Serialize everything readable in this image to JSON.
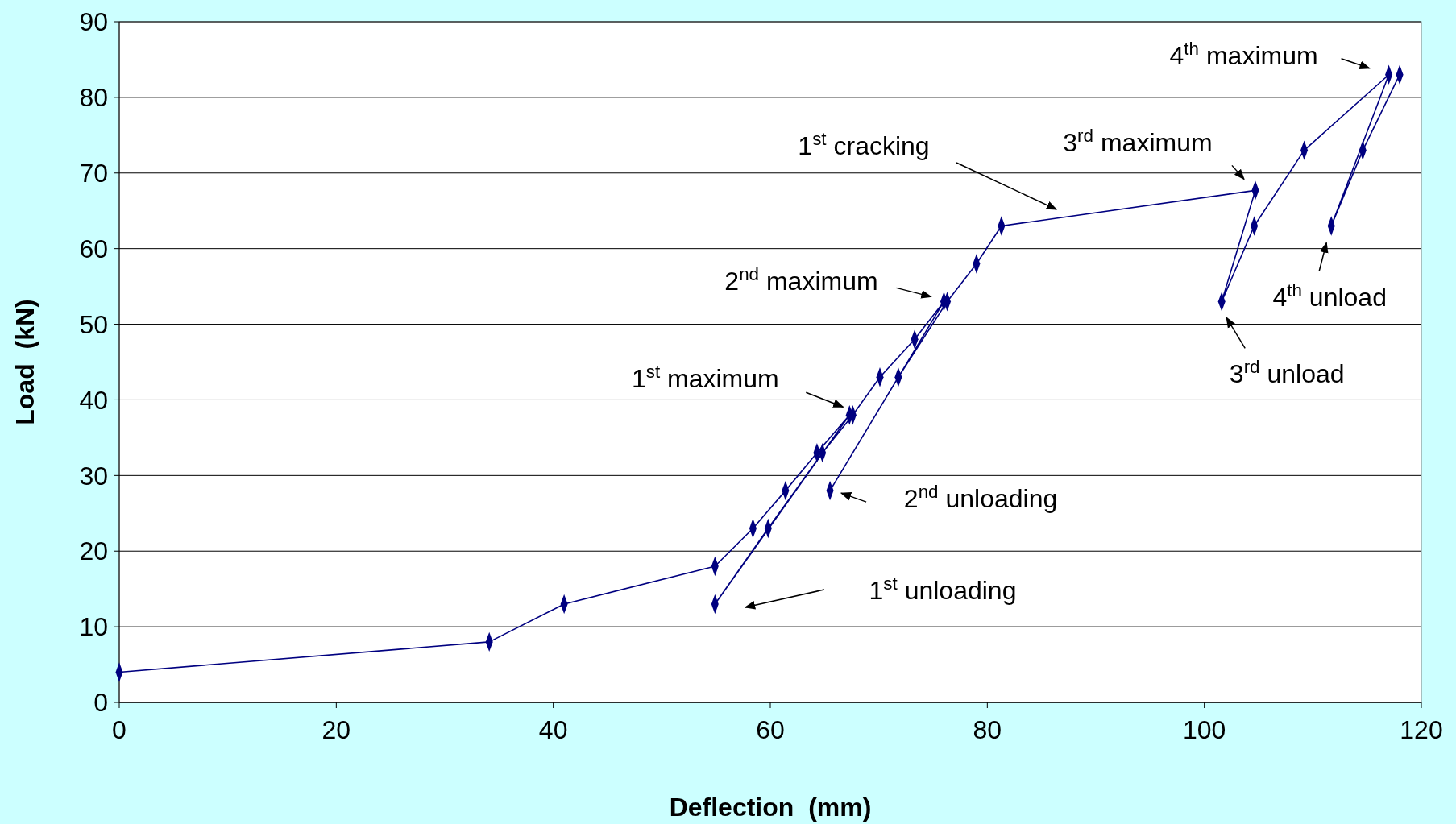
{
  "chart_data": {
    "type": "line",
    "xlabel": "Deflection  (mm)",
    "ylabel": "Load  (kN)",
    "xlim": [
      0,
      120
    ],
    "xticks": [
      0,
      20,
      40,
      60,
      80,
      100,
      120
    ],
    "ylim": [
      0,
      90
    ],
    "yticks": [
      0,
      10,
      20,
      30,
      40,
      50,
      60,
      70,
      80,
      90
    ],
    "grid": "y",
    "marker": "diamond",
    "line_style": "solid",
    "series": [
      {
        "color": "#000080",
        "x": [
          0,
          34.1,
          41,
          54.9,
          58.4,
          61.4,
          64.3,
          67.3,
          54.9,
          59.8,
          64.8,
          67.6,
          70.1,
          73.3,
          76,
          65.5,
          71.8,
          76.3,
          79,
          81.3,
          104.7,
          101.6,
          104.6,
          109.2,
          117,
          111.7,
          114.6,
          118
        ],
        "values": [
          4,
          8,
          13,
          18,
          23,
          28,
          33,
          38,
          13,
          23,
          33,
          38,
          43,
          48,
          53,
          28,
          43,
          53,
          58,
          63,
          67.7,
          53,
          63,
          73,
          83,
          63,
          73,
          83
        ]
      }
    ],
    "annotations": [
      {
        "text": "4$^{th}$ maximum",
        "x": 117,
        "y": 83
      },
      {
        "text": "3$^{rd}$ maximum",
        "x": 104.7,
        "y": 67.7
      },
      "1$^{st}$ cracking",
      {
        "text": "2$^{nd}$ maximum",
        "x": 76,
        "y": 53
      },
      {
        "text": "1$^{st}$ maximum",
        "x": 67.3,
        "y": 38
      },
      {
        "text": "2$^{nd}$ unloading",
        "x": 65.5,
        "y": 28
      },
      "1$^{st}$ unloading",
      {
        "text": "4$^{th}$ unload",
        "x": 111.7,
        "y": 63
      },
      {
        "text": "3$^{rd}$ unload",
        "x": 101.6,
        "y": 53
      }
    ]
  }
}
